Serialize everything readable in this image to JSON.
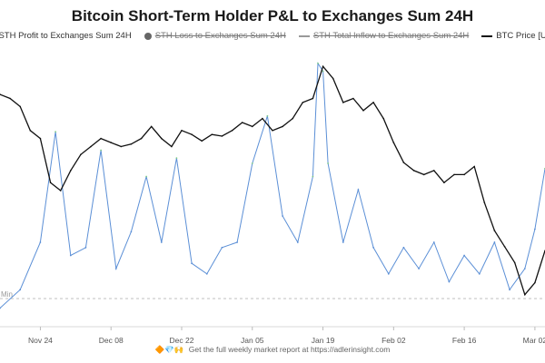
{
  "title": "Bitcoin Short-Term Holder P&L to Exchanges Sum 24H",
  "legend": [
    {
      "label": "STH Profit to Exchanges Sum 24H",
      "color": "#8fd49a",
      "marker": "line",
      "active": true
    },
    {
      "label": "STH Loss to Exchanges Sum 24H",
      "color": "#666666",
      "marker": "dot",
      "active": false
    },
    {
      "label": "STH Total Inflow to Exchanges Sum 24H",
      "color": "#999999",
      "marker": "line",
      "active": false
    },
    {
      "label": "BTC Price [USD]",
      "color": "#111111",
      "marker": "line",
      "active": true
    }
  ],
  "footer": {
    "icons": "🔶💎🙌",
    "text": "Get the full weekly market report at https://adlerinsight.com"
  },
  "min_label": "Min",
  "chart_data": {
    "type": "line",
    "title": "Bitcoin Short-Term Holder P&L to Exchanges Sum 24H",
    "xlabel": "",
    "ylabel": "",
    "x_ticks": [
      "Nov 24",
      "Dec 08",
      "Dec 22",
      "Jan 05",
      "Jan 19",
      "Feb 02",
      "Feb 16",
      "Mar 02"
    ],
    "x_range": [
      "2024-11-16",
      "2025-03-04"
    ],
    "grid": false,
    "legend_position": "top-center",
    "series": [
      {
        "name": "BTC Price [USD]",
        "color": "#111111",
        "unit": "USD",
        "ylim": [
          76000,
          110000
        ],
        "x": [
          "2024-11-16",
          "2024-11-18",
          "2024-11-20",
          "2024-11-22",
          "2024-11-24",
          "2024-11-26",
          "2024-11-28",
          "2024-11-30",
          "2024-12-02",
          "2024-12-04",
          "2024-12-06",
          "2024-12-08",
          "2024-12-10",
          "2024-12-12",
          "2024-12-14",
          "2024-12-16",
          "2024-12-18",
          "2024-12-20",
          "2024-12-22",
          "2024-12-24",
          "2024-12-26",
          "2024-12-28",
          "2024-12-30",
          "2025-01-01",
          "2025-01-03",
          "2025-01-05",
          "2025-01-07",
          "2025-01-09",
          "2025-01-11",
          "2025-01-13",
          "2025-01-15",
          "2025-01-17",
          "2025-01-19",
          "2025-01-21",
          "2025-01-23",
          "2025-01-25",
          "2025-01-27",
          "2025-01-29",
          "2025-01-31",
          "2025-02-02",
          "2025-02-04",
          "2025-02-06",
          "2025-02-08",
          "2025-02-10",
          "2025-02-12",
          "2025-02-14",
          "2025-02-16",
          "2025-02-18",
          "2025-02-20",
          "2025-02-22",
          "2025-02-24",
          "2025-02-26",
          "2025-02-28",
          "2025-03-02",
          "2025-03-04"
        ],
        "values": [
          105000,
          104500,
          103500,
          100500,
          99500,
          94000,
          93000,
          95500,
          97500,
          98500,
          99500,
          99000,
          98500,
          98800,
          99500,
          101000,
          99500,
          98500,
          100500,
          100000,
          99200,
          100000,
          99800,
          100500,
          101500,
          101000,
          102000,
          100500,
          101000,
          102000,
          104000,
          104500,
          108500,
          107000,
          104000,
          104500,
          103000,
          104000,
          102000,
          99000,
          96500,
          95500,
          95000,
          95500,
          94000,
          95000,
          95000,
          96000,
          91500,
          88000,
          86000,
          84000,
          80000,
          81500,
          85500
        ]
      },
      {
        "name": "STH Profit to Exchanges Sum 24H",
        "color": "#8fd49a",
        "values_note": "",
        "x": [
          "2024-11-16",
          "2024-11-20",
          "2024-11-24",
          "2024-11-27",
          "2024-11-30",
          "2024-12-03",
          "2024-12-06",
          "2024-12-09",
          "2024-12-12",
          "2024-12-15",
          "2024-12-18",
          "2024-12-21",
          "2024-12-24",
          "2024-12-27",
          "2024-12-30",
          "2025-01-02",
          "2025-01-05",
          "2025-01-08",
          "2025-01-11",
          "2025-01-14",
          "2025-01-17",
          "2025-01-18",
          "2025-01-19",
          "2025-01-20",
          "2025-01-23",
          "2025-01-26",
          "2025-01-29",
          "2025-02-01",
          "2025-02-04",
          "2025-02-07",
          "2025-02-10",
          "2025-02-13",
          "2025-02-16",
          "2025-02-19",
          "2025-02-22",
          "2025-02-25",
          "2025-02-28",
          "2025-03-02",
          "2025-03-04"
        ],
        "values": [
          0.05,
          0.12,
          0.3,
          0.72,
          0.25,
          0.28,
          0.65,
          0.2,
          0.34,
          0.55,
          0.3,
          0.62,
          0.22,
          0.18,
          0.28,
          0.3,
          0.6,
          0.78,
          0.4,
          0.3,
          0.55,
          0.98,
          0.95,
          0.6,
          0.3,
          0.5,
          0.28,
          0.18,
          0.28,
          0.2,
          0.3,
          0.15,
          0.25,
          0.18,
          0.3,
          0.12,
          0.2,
          0.35,
          0.58
        ]
      }
    ]
  }
}
